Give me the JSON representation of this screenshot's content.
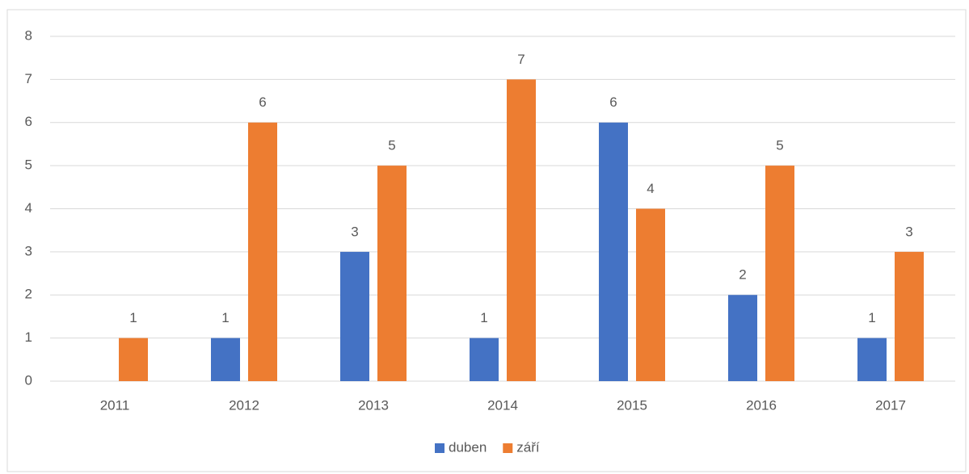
{
  "chart_data": {
    "type": "bar",
    "categories": [
      "2011",
      "2012",
      "2013",
      "2014",
      "2015",
      "2016",
      "2017"
    ],
    "series": [
      {
        "name": "duben",
        "color": "#4472c4",
        "values": [
          null,
          1,
          3,
          1,
          6,
          2,
          1
        ]
      },
      {
        "name": "září",
        "color": "#ed7d31",
        "values": [
          1,
          6,
          5,
          7,
          4,
          5,
          3
        ]
      }
    ],
    "ylim": [
      0,
      8
    ],
    "yticks": [
      0,
      1,
      2,
      3,
      4,
      5,
      6,
      7,
      8
    ],
    "grid": true,
    "legend": "bottom",
    "data_labels": true
  }
}
